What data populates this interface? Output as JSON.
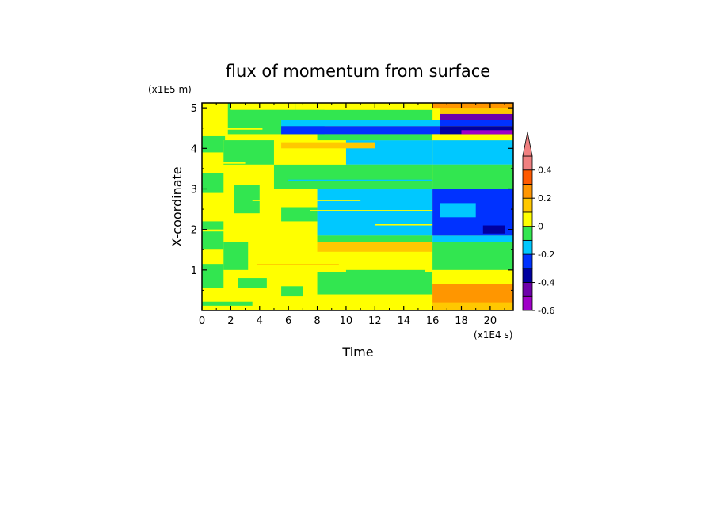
{
  "chart_data": {
    "type": "heatmap",
    "title": "flux of momentum from surface",
    "xlabel": "Time",
    "ylabel": "X-coordinate",
    "x_unit": "(x1E4 s)",
    "y_unit": "(x1E5 m)",
    "xlim": [
      0,
      21.6
    ],
    "ylim": [
      0,
      5.12
    ],
    "x_ticks": [
      "0",
      "2",
      "4",
      "6",
      "8",
      "10",
      "12",
      "14",
      "16",
      "18",
      "20"
    ],
    "x_tick_values": [
      0,
      2,
      4,
      6,
      8,
      10,
      12,
      14,
      16,
      18,
      20
    ],
    "y_ticks": [
      "1",
      "2",
      "3",
      "4",
      "5"
    ],
    "y_tick_values": [
      1,
      2,
      3,
      4,
      5
    ],
    "colorbar": {
      "levels": [
        -0.6,
        -0.5,
        -0.4,
        -0.3,
        -0.2,
        -0.1,
        0,
        0.1,
        0.2,
        0.3,
        0.4,
        0.5
      ],
      "colors": [
        "#a000c8",
        "#6e00aa",
        "#0000a0",
        "#0032ff",
        "#00c8ff",
        "#32e650",
        "#ffff00",
        "#ffc800",
        "#ff9600",
        "#ff5a00",
        "#f08080"
      ],
      "tick_labels": [
        "0.4",
        "0.2",
        "0",
        "-0.2",
        "-0.4",
        "-0.6"
      ],
      "tick_values": [
        0.4,
        0.2,
        0,
        -0.2,
        -0.4,
        -0.6
      ],
      "extend": "max"
    },
    "regions": [
      {
        "x": [
          0,
          2.5
        ],
        "y": [
          0,
          5.12
        ],
        "value": 0.05
      },
      {
        "x": [
          0,
          1.6
        ],
        "y": [
          0.55,
          1.15
        ],
        "value": -0.05
      },
      {
        "x": [
          0,
          1.6
        ],
        "y": [
          1.5,
          2.2
        ],
        "value": -0.05
      },
      {
        "x": [
          0,
          1.6
        ],
        "y": [
          2.9,
          3.4
        ],
        "value": -0.05
      },
      {
        "x": [
          0,
          1.6
        ],
        "y": [
          3.9,
          4.3
        ],
        "value": -0.05
      },
      {
        "x": [
          1.5,
          5.5
        ],
        "y": [
          0,
          1.7
        ],
        "value": 0.05
      },
      {
        "x": [
          1.5,
          3.2
        ],
        "y": [
          1.0,
          1.7
        ],
        "value": -0.05
      },
      {
        "x": [
          2.5,
          4.5
        ],
        "y": [
          0.55,
          0.8
        ],
        "value": -0.05
      },
      {
        "x": [
          1.5,
          5.5
        ],
        "y": [
          1.7,
          4.2
        ],
        "value": 0.05
      },
      {
        "x": [
          1.5,
          5.0
        ],
        "y": [
          3.6,
          4.2
        ],
        "value": -0.05
      },
      {
        "x": [
          2.2,
          4.0
        ],
        "y": [
          2.4,
          3.1
        ],
        "value": -0.05
      },
      {
        "x": [
          1.8,
          8.5
        ],
        "y": [
          4.35,
          5.12
        ],
        "value": -0.05
      },
      {
        "x": [
          2.0,
          6.5
        ],
        "y": [
          4.95,
          5.12
        ],
        "value": 0.05
      },
      {
        "x": [
          5.5,
          8.0
        ],
        "y": [
          0,
          1.7
        ],
        "value": 0.05
      },
      {
        "x": [
          5.5,
          7.0
        ],
        "y": [
          0.35,
          0.6
        ],
        "value": -0.05
      },
      {
        "x": [
          8.0,
          16.0
        ],
        "y": [
          0,
          0.4
        ],
        "value": 0.05
      },
      {
        "x": [
          8.0,
          16.0
        ],
        "y": [
          0.4,
          0.95
        ],
        "value": -0.05
      },
      {
        "x": [
          8.0,
          16.0
        ],
        "y": [
          0.95,
          1.45
        ],
        "value": 0.05
      },
      {
        "x": [
          8.0,
          16.0
        ],
        "y": [
          1.45,
          1.7
        ],
        "value": 0.15
      },
      {
        "x": [
          10.0,
          15.5
        ],
        "y": [
          0.75,
          1.0
        ],
        "value": -0.05
      },
      {
        "x": [
          5.5,
          8.0
        ],
        "y": [
          1.7,
          3.0
        ],
        "value": 0.05
      },
      {
        "x": [
          5.5,
          8.0
        ],
        "y": [
          2.2,
          2.55
        ],
        "value": -0.05
      },
      {
        "x": [
          8.0,
          16.0
        ],
        "y": [
          1.7,
          1.85
        ],
        "value": -0.05
      },
      {
        "x": [
          8.0,
          16.0
        ],
        "y": [
          1.85,
          3.2
        ],
        "value": -0.15
      },
      {
        "x": [
          5.0,
          16.0
        ],
        "y": [
          3.0,
          3.6
        ],
        "value": -0.05
      },
      {
        "x": [
          5.0,
          10.0
        ],
        "y": [
          3.6,
          4.2
        ],
        "value": 0.05
      },
      {
        "x": [
          10.0,
          16.0
        ],
        "y": [
          3.6,
          4.2
        ],
        "value": -0.15
      },
      {
        "x": [
          5.5,
          12.0
        ],
        "y": [
          4.0,
          4.15
        ],
        "value": 0.15
      },
      {
        "x": [
          8.0,
          16.0
        ],
        "y": [
          4.2,
          4.35
        ],
        "value": -0.05
      },
      {
        "x": [
          5.5,
          16.5
        ],
        "y": [
          4.35,
          4.55
        ],
        "value": -0.25
      },
      {
        "x": [
          5.5,
          16.5
        ],
        "y": [
          4.55,
          4.7
        ],
        "value": -0.15
      },
      {
        "x": [
          6.5,
          16.0
        ],
        "y": [
          4.7,
          4.95
        ],
        "value": -0.05
      },
      {
        "x": [
          6.5,
          16.0
        ],
        "y": [
          4.95,
          5.12
        ],
        "value": 0.05
      },
      {
        "x": [
          16.0,
          21.6
        ],
        "y": [
          0,
          0.2
        ],
        "value": 0.15
      },
      {
        "x": [
          16.0,
          21.6
        ],
        "y": [
          0.2,
          0.65
        ],
        "value": 0.25
      },
      {
        "x": [
          16.0,
          21.6
        ],
        "y": [
          0.65,
          1.0
        ],
        "value": 0.05
      },
      {
        "x": [
          16.0,
          21.6
        ],
        "y": [
          1.0,
          1.7
        ],
        "value": -0.05
      },
      {
        "x": [
          16.0,
          21.6
        ],
        "y": [
          1.7,
          1.85
        ],
        "value": -0.15
      },
      {
        "x": [
          16.0,
          21.6
        ],
        "y": [
          1.85,
          3.0
        ],
        "value": -0.25
      },
      {
        "x": [
          16.5,
          19.0
        ],
        "y": [
          2.3,
          2.65
        ],
        "value": -0.15
      },
      {
        "x": [
          19.5,
          21.0
        ],
        "y": [
          1.9,
          2.1
        ],
        "value": -0.35
      },
      {
        "x": [
          16.0,
          21.6
        ],
        "y": [
          3.0,
          3.6
        ],
        "value": -0.05
      },
      {
        "x": [
          16.0,
          21.6
        ],
        "y": [
          3.6,
          4.2
        ],
        "value": -0.15
      },
      {
        "x": [
          16.0,
          21.6
        ],
        "y": [
          4.2,
          4.35
        ],
        "value": 0.05
      },
      {
        "x": [
          16.5,
          21.6
        ],
        "y": [
          4.35,
          4.55
        ],
        "value": -0.35
      },
      {
        "x": [
          18.0,
          21.6
        ],
        "y": [
          4.35,
          4.45
        ],
        "value": -0.55
      },
      {
        "x": [
          16.5,
          21.6
        ],
        "y": [
          4.55,
          4.7
        ],
        "value": -0.25
      },
      {
        "x": [
          16.5,
          21.6
        ],
        "y": [
          4.7,
          4.85
        ],
        "value": -0.45
      },
      {
        "x": [
          16.5,
          21.6
        ],
        "y": [
          4.85,
          5.0
        ],
        "value": 0.15
      },
      {
        "x": [
          16.0,
          21.6
        ],
        "y": [
          5.0,
          5.12
        ],
        "value": 0.25
      }
    ],
    "bands": [
      {
        "x": [
          0,
          3.5
        ],
        "y": [
          0.12,
          0.22
        ],
        "value": -0.05
      },
      {
        "x": [
          0,
          2.8
        ],
        "y": [
          1.95,
          2.0
        ],
        "value": 0.05
      },
      {
        "x": [
          0,
          3.0
        ],
        "y": [
          3.62,
          3.66
        ],
        "value": 0.05
      },
      {
        "x": [
          0,
          4.2
        ],
        "y": [
          4.46,
          4.5
        ],
        "value": 0.05
      },
      {
        "x": [
          3.5,
          11.0
        ],
        "y": [
          2.7,
          2.73
        ],
        "value": 0.05
      },
      {
        "x": [
          6.0,
          16.0
        ],
        "y": [
          3.2,
          3.23
        ],
        "value": -0.15
      },
      {
        "x": [
          7.5,
          16.0
        ],
        "y": [
          2.45,
          2.48
        ],
        "value": 0.05
      },
      {
        "x": [
          12.0,
          16.0
        ],
        "y": [
          2.1,
          2.13
        ],
        "value": 0.05
      },
      {
        "x": [
          3.8,
          9.5
        ],
        "y": [
          1.12,
          1.15
        ],
        "value": 0.15
      },
      {
        "x": [
          0,
          1.2
        ],
        "y": [
          2.5,
          2.55
        ],
        "value": 0.05
      },
      {
        "x": [
          0,
          1.2
        ],
        "y": [
          4.75,
          4.8
        ],
        "value": 0.05
      }
    ]
  }
}
